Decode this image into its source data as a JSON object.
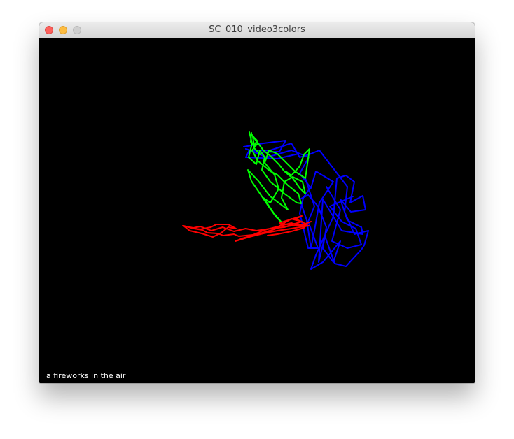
{
  "window": {
    "title": "SC_010_video3colors"
  },
  "canvas": {
    "background": "#000000",
    "caption": "a fireworks in the air",
    "strokes": [
      {
        "color_name": "green",
        "color": "#00ff00"
      },
      {
        "color_name": "blue",
        "color": "#0000ff"
      },
      {
        "color_name": "red",
        "color": "#ff0000"
      }
    ]
  },
  "icons": {
    "close": "close-icon",
    "minimize": "minimize-icon",
    "zoom": "zoom-icon"
  }
}
